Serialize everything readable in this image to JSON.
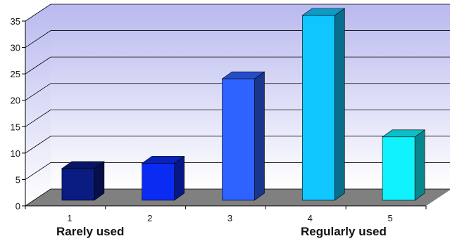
{
  "chart_data": {
    "type": "bar",
    "style": "3d-column",
    "categories": [
      "1",
      "2",
      "3",
      "4",
      "5"
    ],
    "values": [
      6,
      7,
      23,
      35,
      12
    ],
    "colors": [
      "#0a1b82",
      "#0a2cf2",
      "#2f63ff",
      "#10c6ff",
      "#10f3ff"
    ],
    "yticks": [
      0,
      5,
      10,
      15,
      20,
      25,
      30,
      35
    ],
    "ylim": [
      0,
      35
    ],
    "grid": true,
    "legend": "none",
    "annotations": [
      {
        "text": "Rarely used",
        "anchor_category": "1"
      },
      {
        "text": "Regularly used",
        "anchor_category": "4"
      }
    ]
  },
  "colors": {
    "wall_top": "#b9b9ef",
    "wall_bottom": "#ffffff",
    "floor": "#808080",
    "gridline": "#000000"
  }
}
